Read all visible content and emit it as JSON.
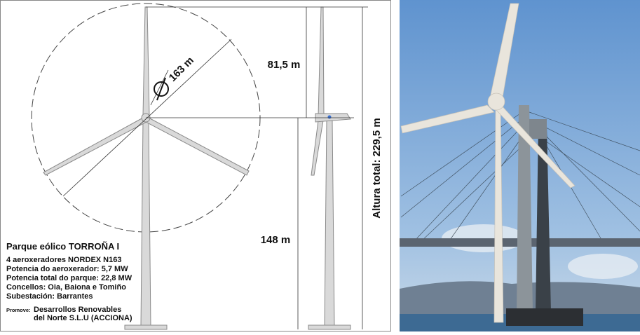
{
  "diagram": {
    "dimensions": {
      "diameter": "163 m",
      "rotor_top": "81,5 m",
      "hub_height": "148 m",
      "total_height": "Altura total:  229,5 m"
    },
    "info": {
      "title": "Parque eólico TORROÑA I",
      "lines": [
        "4 aeroxeradores NORDEX N163",
        "Potencia do aeroxerador: 5,7 MW",
        "Potencia total do parque: 22,8 MW",
        "Concellos: Oia, Baiona e Tomiño",
        "Subestación: Barrantes"
      ],
      "promoter_label": "Promove:",
      "promoter": [
        "Desarrollos Renovables",
        "del Norte S.L.U (ACCIONA)"
      ]
    }
  }
}
